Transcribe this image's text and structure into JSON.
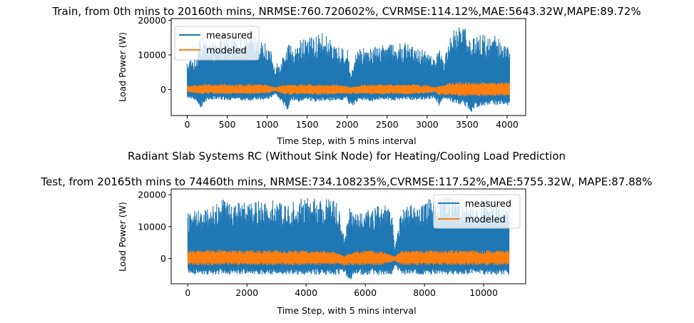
{
  "figure": {
    "suptitle": "Radiant Slab Systems RC (Without Sink Node) for Heating/Cooling Load Prediction"
  },
  "colors": {
    "measured": "#1f77b4",
    "modeled": "#ff7f0e"
  },
  "chart_data": [
    {
      "type": "line",
      "title": "Train, from 0th mins to 20160th mins, NRMSE:760.720602%, CVRMSE:114.12%,MAE:5643.32W,MAPE:89.72%",
      "xlabel": "Time Step, with 5 mins interval",
      "ylabel": "Load Power (W)",
      "xlim": [
        -200,
        4232
      ],
      "ylim": [
        -7500,
        20500
      ],
      "xticks": [
        0,
        500,
        1000,
        1500,
        2000,
        2500,
        3000,
        3500,
        4000
      ],
      "yticks": [
        0,
        10000,
        20000
      ],
      "legend": "upper-left",
      "n_points": 4032,
      "series": [
        {
          "name": "measured",
          "envelope": [
            [
              0,
              8500,
              -2500
            ],
            [
              100,
              9500,
              -2800
            ],
            [
              170,
              15000,
              -5800
            ],
            [
              250,
              14500,
              -3000
            ],
            [
              350,
              13000,
              -2800
            ],
            [
              450,
              16000,
              -3000
            ],
            [
              550,
              15000,
              -3200
            ],
            [
              650,
              16000,
              -3000
            ],
            [
              750,
              15000,
              -3200
            ],
            [
              850,
              17000,
              -3000
            ],
            [
              950,
              14000,
              -2800
            ],
            [
              1050,
              11000,
              -2500
            ],
            [
              1100,
              7000,
              -1000
            ],
            [
              1200,
              9500,
              -4500
            ],
            [
              1250,
              13000,
              -6000
            ],
            [
              1300,
              12500,
              -3000
            ],
            [
              1400,
              14000,
              -3500
            ],
            [
              1500,
              15000,
              -3000
            ],
            [
              1600,
              15500,
              -3500
            ],
            [
              1700,
              16500,
              -3200
            ],
            [
              1800,
              14000,
              -3500
            ],
            [
              1900,
              12000,
              -3000
            ],
            [
              2000,
              12000,
              -3000
            ],
            [
              2050,
              5000,
              -5500
            ],
            [
              2100,
              10000,
              -4000
            ],
            [
              2200,
              13000,
              -3000
            ],
            [
              2300,
              12000,
              -3500
            ],
            [
              2400,
              13000,
              -3000
            ],
            [
              2500,
              14000,
              -3000
            ],
            [
              2600,
              13000,
              -3200
            ],
            [
              2700,
              13500,
              -2800
            ],
            [
              2800,
              13000,
              -3000
            ],
            [
              2900,
              12500,
              -3000
            ],
            [
              3000,
              12000,
              -2800
            ],
            [
              3100,
              9000,
              -2500
            ],
            [
              3150,
              12000,
              -5000
            ],
            [
              3200,
              8000,
              -3000
            ],
            [
              3300,
              17000,
              -3500
            ],
            [
              3350,
              18500,
              -4000
            ],
            [
              3450,
              18000,
              -4500
            ],
            [
              3550,
              16000,
              -6500
            ],
            [
              3650,
              17000,
              -5000
            ],
            [
              3750,
              15000,
              -4500
            ],
            [
              3850,
              15500,
              -4500
            ],
            [
              3950,
              14500,
              -4500
            ],
            [
              4032,
              14000,
              -4500
            ]
          ]
        },
        {
          "name": "modeled",
          "envelope": [
            [
              0,
              1000,
              -700
            ],
            [
              200,
              1500,
              -1200
            ],
            [
              400,
              1500,
              -1300
            ],
            [
              600,
              1500,
              -1200
            ],
            [
              800,
              1500,
              -1200
            ],
            [
              1000,
              1300,
              -1100
            ],
            [
              1100,
              600,
              -300
            ],
            [
              1200,
              1200,
              -1400
            ],
            [
              1300,
              1400,
              -1400
            ],
            [
              1500,
              1500,
              -1300
            ],
            [
              1700,
              1500,
              -1400
            ],
            [
              1900,
              1300,
              -1200
            ],
            [
              2050,
              600,
              -1200
            ],
            [
              2200,
              1400,
              -1300
            ],
            [
              2400,
              1500,
              -1300
            ],
            [
              2600,
              1400,
              -1300
            ],
            [
              2800,
              1500,
              -1300
            ],
            [
              3000,
              1200,
              -1100
            ],
            [
              3100,
              600,
              -600
            ],
            [
              3150,
              1000,
              -1600
            ],
            [
              3250,
              1800,
              -1500
            ],
            [
              3400,
              2200,
              -1800
            ],
            [
              3600,
              2000,
              -1800
            ],
            [
              3800,
              2000,
              -1800
            ],
            [
              4032,
              2000,
              -1800
            ]
          ]
        }
      ]
    },
    {
      "type": "line",
      "title": "Test, from 20165th mins to 74460th mins, NRMSE:734.108235%,CVRMSE:117.52%,MAE:5755.32W, MAPE:87.88%",
      "xlabel": "Time Step, with 5 mins interval",
      "ylabel": "Load Power (W)",
      "xlim": [
        -560,
        11420
      ],
      "ylim": [
        -7900,
        21800
      ],
      "xticks": [
        0,
        2000,
        4000,
        6000,
        8000,
        10000
      ],
      "yticks": [
        0,
        10000,
        20000
      ],
      "legend": "upper-right",
      "n_points": 10860,
      "series": [
        {
          "name": "measured",
          "envelope": [
            [
              0,
              14500,
              -4500
            ],
            [
              300,
              15000,
              -5000
            ],
            [
              600,
              16000,
              -5000
            ],
            [
              900,
              17000,
              -5000
            ],
            [
              1200,
              18500,
              -5000
            ],
            [
              1500,
              17000,
              -5000
            ],
            [
              1800,
              18000,
              -5000
            ],
            [
              2100,
              17000,
              -4800
            ],
            [
              2400,
              18000,
              -5000
            ],
            [
              2700,
              19000,
              -5000
            ],
            [
              3000,
              18000,
              -5000
            ],
            [
              3300,
              17000,
              -5000
            ],
            [
              3600,
              18000,
              -5000
            ],
            [
              3900,
              19000,
              -5000
            ],
            [
              4200,
              19000,
              -5000
            ],
            [
              4500,
              18500,
              -5000
            ],
            [
              4800,
              19000,
              -5000
            ],
            [
              5100,
              17000,
              -5000
            ],
            [
              5300,
              6000,
              -4000
            ],
            [
              5450,
              16000,
              -7500
            ],
            [
              5600,
              14000,
              -5500
            ],
            [
              5800,
              14000,
              -5000
            ],
            [
              6000,
              15000,
              -5000
            ],
            [
              6300,
              16000,
              -5000
            ],
            [
              6600,
              17000,
              -5000
            ],
            [
              6900,
              15000,
              -5000
            ],
            [
              7000,
              3000,
              -2500
            ],
            [
              7200,
              15000,
              -5000
            ],
            [
              7500,
              17000,
              -5000
            ],
            [
              7800,
              18000,
              -5000
            ],
            [
              8100,
              18500,
              -5000
            ],
            [
              8400,
              19000,
              -5000
            ],
            [
              8700,
              20000,
              -5000
            ],
            [
              9000,
              19000,
              -5000
            ],
            [
              9300,
              18000,
              -5000
            ],
            [
              9600,
              17000,
              -5000
            ],
            [
              9900,
              18000,
              -5000
            ],
            [
              10200,
              19000,
              -5000
            ],
            [
              10500,
              17000,
              -5000
            ],
            [
              10860,
              16000,
              -5000
            ]
          ]
        },
        {
          "name": "modeled",
          "envelope": [
            [
              0,
              2500,
              -2000
            ],
            [
              500,
              2500,
              -2000
            ],
            [
              1000,
              2800,
              -2200
            ],
            [
              1500,
              2500,
              -2000
            ],
            [
              2000,
              2500,
              -2000
            ],
            [
              2500,
              2500,
              -2000
            ],
            [
              3000,
              2500,
              -2000
            ],
            [
              3500,
              2500,
              -2000
            ],
            [
              4000,
              2500,
              -2000
            ],
            [
              4500,
              2500,
              -2000
            ],
            [
              5000,
              2000,
              -1800
            ],
            [
              5300,
              600,
              -2200
            ],
            [
              5500,
              2000,
              -2000
            ],
            [
              6000,
              2500,
              -2000
            ],
            [
              6500,
              2500,
              -2000
            ],
            [
              7000,
              700,
              -700
            ],
            [
              7200,
              2500,
              -2000
            ],
            [
              7700,
              2500,
              -2000
            ],
            [
              8200,
              2500,
              -2000
            ],
            [
              8700,
              2500,
              -2000
            ],
            [
              9200,
              2500,
              -2000
            ],
            [
              9700,
              2500,
              -2000
            ],
            [
              10200,
              2500,
              -2000
            ],
            [
              10860,
              2500,
              -2000
            ]
          ]
        }
      ]
    }
  ]
}
